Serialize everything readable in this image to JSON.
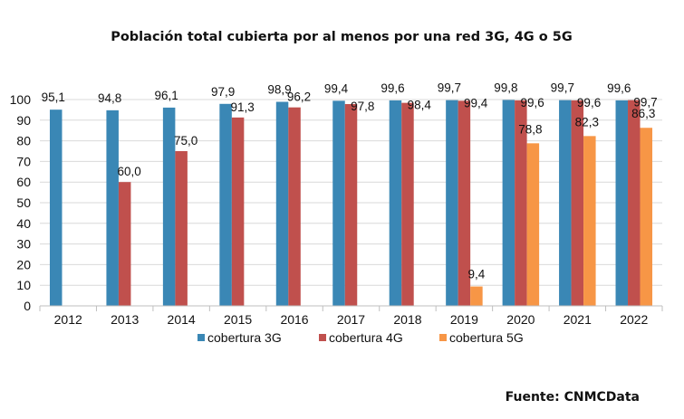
{
  "chart_data": {
    "type": "bar",
    "title": "Población total cubierta por al menos por una red 3G, 4G o 5G",
    "source": "Fuente: CNMCData",
    "categories": [
      "2012",
      "2013",
      "2014",
      "2015",
      "2016",
      "2017",
      "2018",
      "2019",
      "2020",
      "2021",
      "2022"
    ],
    "series": [
      {
        "name": "cobertura 3G",
        "color": "#3a87b5",
        "values": [
          95.1,
          94.8,
          96.1,
          97.9,
          98.9,
          99.4,
          99.6,
          99.7,
          99.8,
          99.7,
          99.6
        ],
        "labels": [
          "95,1",
          "94,8",
          "96,1",
          "97,9",
          "98,9",
          "99,4",
          "99,6",
          "99,7",
          "99,8",
          "99,7",
          "99,6"
        ]
      },
      {
        "name": "cobertura 4G",
        "color": "#c0504d",
        "values": [
          null,
          60.0,
          75.0,
          91.3,
          96.2,
          97.8,
          98.4,
          99.4,
          99.6,
          99.6,
          99.7
        ],
        "labels": [
          null,
          "60,0",
          "75,0",
          "91,3",
          "96,2",
          "97,8",
          "98,4",
          "99,4",
          "99,6",
          "99,6",
          "99,7"
        ]
      },
      {
        "name": "cobertura 5G",
        "color": "#f79646",
        "values": [
          null,
          null,
          null,
          null,
          null,
          null,
          null,
          9.4,
          78.8,
          82.3,
          86.3
        ],
        "labels": [
          null,
          null,
          null,
          null,
          null,
          null,
          null,
          "9,4",
          "78,8",
          "82,3",
          "86,3"
        ]
      }
    ],
    "ylim": [
      0,
      100
    ],
    "yticks": [
      0,
      10,
      20,
      30,
      40,
      50,
      60,
      70,
      80,
      90,
      100
    ],
    "xlabel": "",
    "ylabel": "",
    "grid": true,
    "legend_position": "bottom"
  }
}
